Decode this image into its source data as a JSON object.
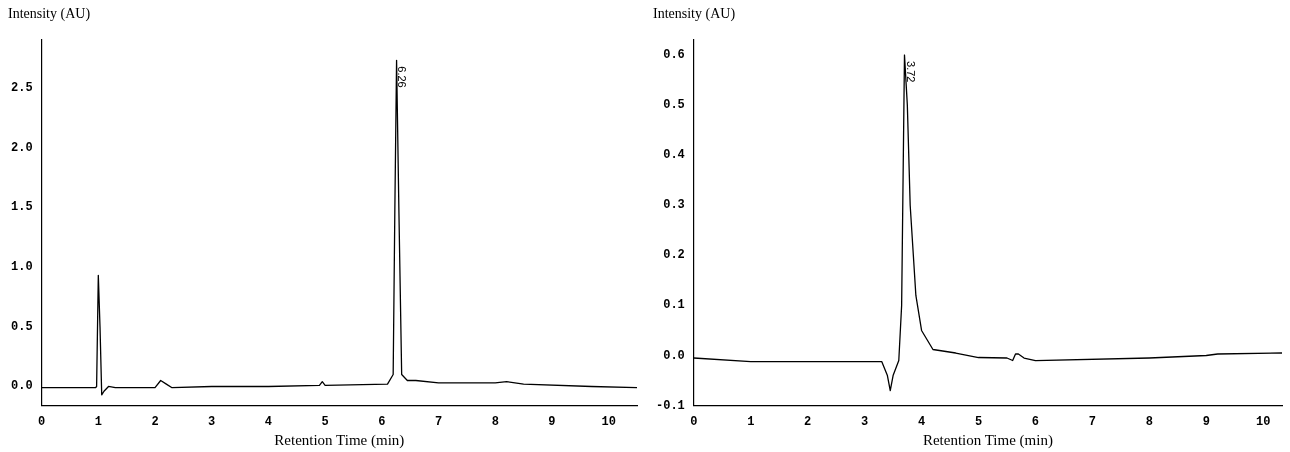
{
  "chart_data": [
    {
      "type": "line",
      "xlabel": "Retention Time (min)",
      "ylabel": "Intensity (AU)",
      "xlim": [
        0,
        10.5
      ],
      "ylim": [
        -0.16,
        2.9
      ],
      "xticks": [
        0,
        1,
        2,
        3,
        4,
        5,
        6,
        7,
        8,
        9,
        10
      ],
      "yticks": [
        {
          "value": 0,
          "label": "0.0"
        },
        {
          "value": 0.5,
          "label": "0.5"
        },
        {
          "value": 1,
          "label": "1.0"
        },
        {
          "value": 1.5,
          "label": "1.5"
        },
        {
          "value": 2,
          "label": "2.0"
        },
        {
          "value": 2.5,
          "label": "2.5"
        }
      ],
      "series": [
        {
          "color": "#000000",
          "x": [
            0,
            0.95,
            0.97,
            1.0,
            1.03,
            1.06,
            1.1,
            1.18,
            1.3,
            2.0,
            2.1,
            2.2,
            2.3,
            3,
            4,
            4.9,
            4.95,
            5.0,
            6.1,
            6.2,
            6.23,
            6.26,
            6.3,
            6.35,
            6.45,
            6.6,
            7,
            8,
            8.2,
            8.5,
            9.7,
            10.5
          ],
          "values": [
            -0.01,
            -0.01,
            0.0,
            0.93,
            0.5,
            -0.07,
            -0.04,
            0.0,
            -0.01,
            -0.01,
            0.05,
            0.02,
            -0.01,
            0.0,
            0.0,
            0.01,
            0.04,
            0.01,
            0.02,
            0.1,
            1.5,
            2.73,
            1.5,
            0.1,
            0.05,
            0.05,
            0.03,
            0.03,
            0.04,
            0.02,
            0.0,
            -0.01
          ]
        }
      ],
      "annotations": [
        {
          "text": "6.26",
          "x": 6.26,
          "y": 2.73
        }
      ]
    },
    {
      "type": "line",
      "xlabel": "Retention Time (min)",
      "ylabel": "Intensity (AU)",
      "xlim": [
        0,
        10.33
      ],
      "ylim": [
        -0.1,
        0.63
      ],
      "xticks": [
        0,
        1,
        2,
        3,
        4,
        5,
        6,
        7,
        8,
        9,
        10
      ],
      "yticks": [
        {
          "value": -0.1,
          "label": "-0.1"
        },
        {
          "value": 0,
          "label": "0.0"
        },
        0.1,
        0.2,
        0.3,
        0.4,
        0.5,
        0.6
      ],
      "series": [
        {
          "color": "#000000",
          "x": [
            0,
            1,
            3.3,
            3.4,
            3.45,
            3.5,
            3.6,
            3.65,
            3.7,
            3.75,
            3.8,
            3.9,
            4.0,
            4.2,
            4.6,
            5.0,
            5.5,
            5.6,
            5.65,
            5.7,
            5.8,
            6.0,
            8,
            9,
            9.2,
            10.33
          ],
          "values": [
            -0.005,
            -0.012,
            -0.012,
            -0.04,
            -0.07,
            -0.04,
            -0.01,
            0.1,
            0.6,
            0.5,
            0.3,
            0.12,
            0.05,
            0.012,
            0.005,
            -0.004,
            -0.005,
            -0.01,
            0.003,
            0.003,
            -0.005,
            -0.01,
            -0.005,
            0.0,
            0.003,
            0.005
          ]
        }
      ],
      "annotations": [
        {
          "text": "3.72",
          "x": 3.72,
          "y": 0.6
        }
      ]
    }
  ]
}
